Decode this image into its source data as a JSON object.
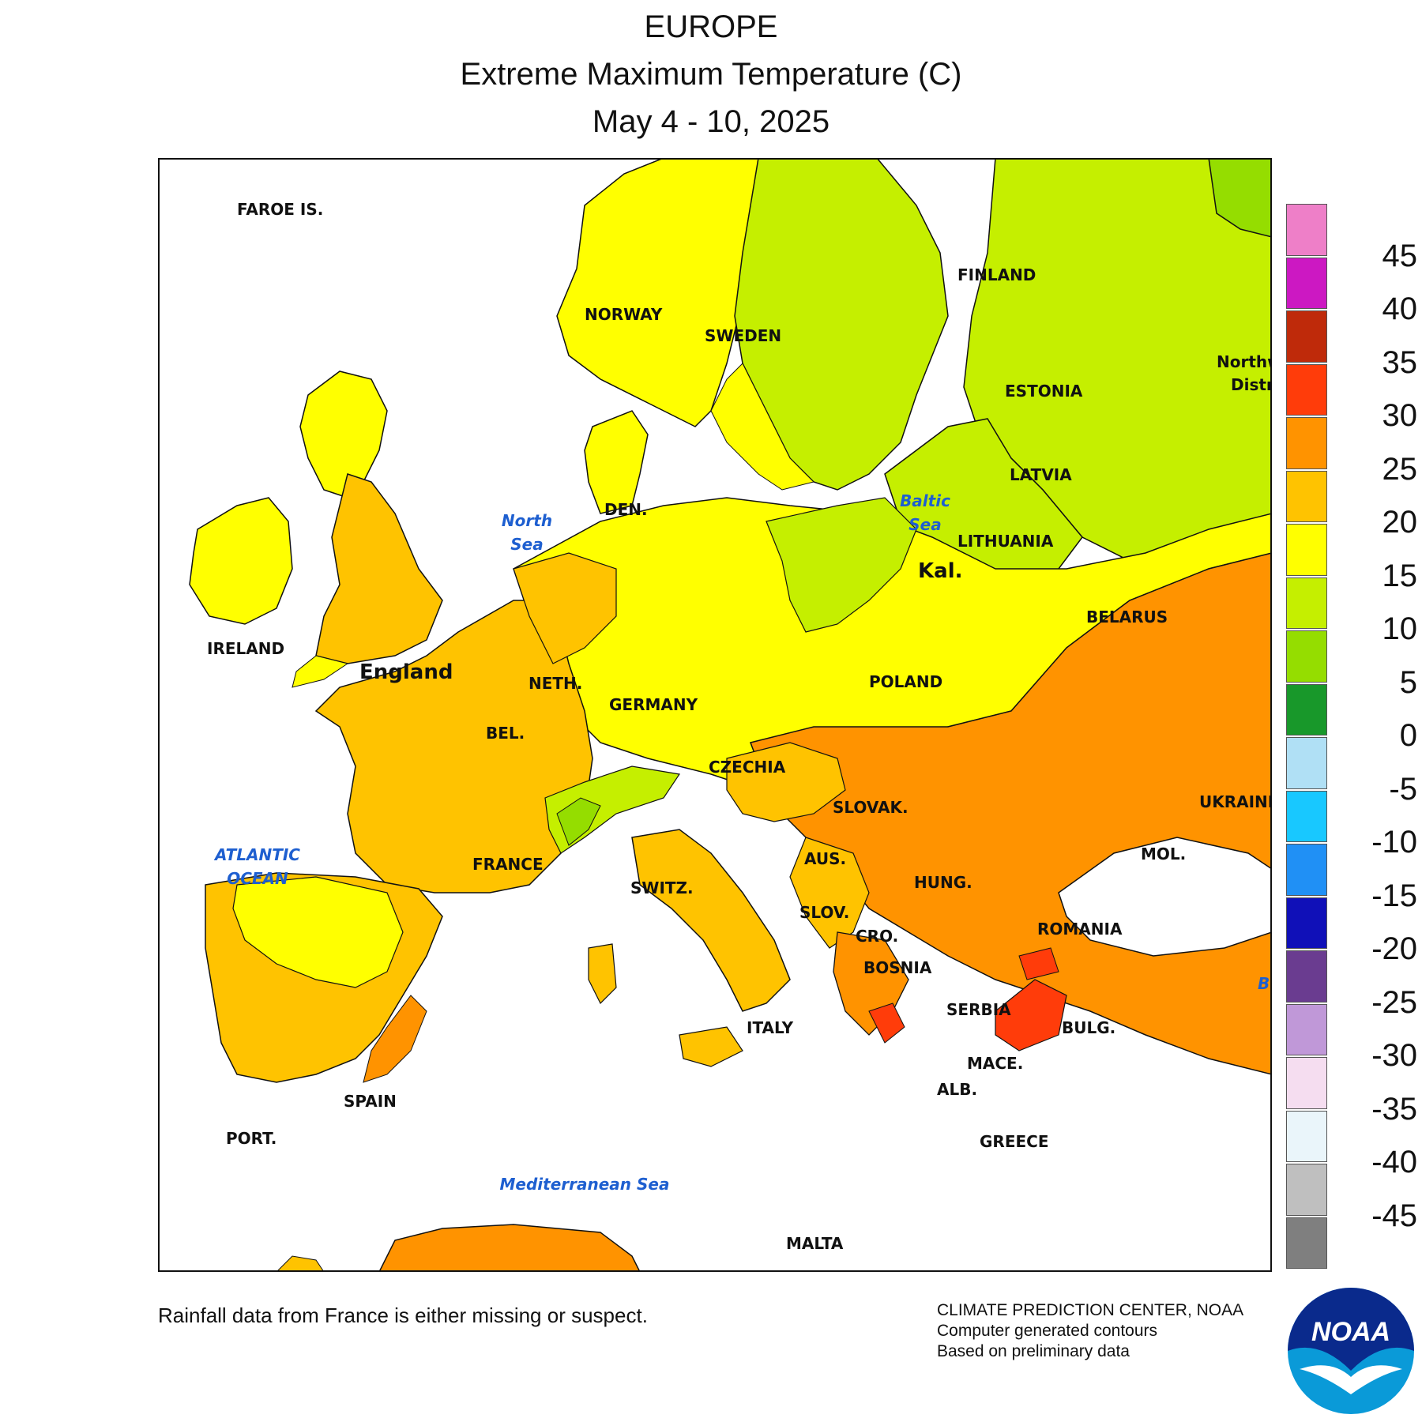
{
  "title": {
    "region": "EUROPE",
    "variable": "Extreme Maximum Temperature (C)",
    "period": "May 4 - 10, 2025"
  },
  "legend": {
    "ticks": [
      "45",
      "40",
      "35",
      "30",
      "25",
      "20",
      "15",
      "10",
      "5",
      "0",
      "-5",
      "-10",
      "-15",
      "-20",
      "-25",
      "-30",
      "-35",
      "-40",
      "-45"
    ],
    "bins": [
      {
        "color": "#ee7fc8",
        "range": ">45"
      },
      {
        "color": "#cc18c2",
        "range": "40 to 45"
      },
      {
        "color": "#bf2a0a",
        "range": "35 to 40"
      },
      {
        "color": "#ff3c0a",
        "range": "30 to 35"
      },
      {
        "color": "#ff9300",
        "range": "25 to 30"
      },
      {
        "color": "#ffc300",
        "range": "20 to 25"
      },
      {
        "color": "#ffff00",
        "range": "15 to 20"
      },
      {
        "color": "#c5ef00",
        "range": "10 to 15"
      },
      {
        "color": "#95dd00",
        "range": "5 to 10"
      },
      {
        "color": "#18982a",
        "range": "0 to 5"
      },
      {
        "color": "#b0e0f5",
        "range": "-5 to 0"
      },
      {
        "color": "#18c8ff",
        "range": "-10 to -5"
      },
      {
        "color": "#2090f5",
        "range": "-15 to -10"
      },
      {
        "color": "#1010b8",
        "range": "-20 to -15"
      },
      {
        "color": "#6a3c90",
        "range": "-25 to -20"
      },
      {
        "color": "#c098d8",
        "range": "-30 to -25"
      },
      {
        "color": "#f5ddf0",
        "range": "-35 to -30"
      },
      {
        "color": "#eaf5fa",
        "range": "-40 to -35"
      },
      {
        "color": "#bfbfbf",
        "range": "-45 to -40"
      },
      {
        "color": "#7f7f7f",
        "range": "<-45"
      }
    ]
  },
  "labels": {
    "faroe": "FAROE IS.",
    "norway": "NORWAY",
    "sweden": "SWEDEN",
    "finland": "FINLAND",
    "estonia": "ESTONIA",
    "latvia": "LATVIA",
    "lithuania": "LITHUANIA",
    "kal": "Kal.",
    "belarus": "BELARUS",
    "ireland": "IRELAND",
    "england": "England",
    "den": "DEN.",
    "neth": "NETH.",
    "germany": "GERMANY",
    "poland": "POLAND",
    "bel": "BEL.",
    "czechia": "CZECHIA",
    "slovak": "SLOVAK.",
    "ukraine": "UKRAINE",
    "france": "FRANCE",
    "switz": "SWITZ.",
    "aus": "AUS.",
    "hung": "HUNG.",
    "mol": "MOL.",
    "slov": "SLOV.",
    "cro": "CRO.",
    "romania": "ROMANIA",
    "bosnia": "BOSNIA",
    "serbia": "SERBIA",
    "italy": "ITALY",
    "bulg": "BULG.",
    "mace": "MACE.",
    "alb": "ALB.",
    "spain": "SPAIN",
    "port": "PORT.",
    "greece": "GREECE",
    "malta": "MALTA",
    "northwest": "Northw",
    "district": "Distri",
    "b": "B"
  },
  "seas": {
    "north_1": "North",
    "north_2": "Sea",
    "baltic_1": "Baltic",
    "baltic_2": "Sea",
    "atlantic_1": "ATLANTIC",
    "atlantic_2": "OCEAN",
    "med": "Mediterranean Sea"
  },
  "footer": {
    "note": "Rainfall data from France is either missing or suspect.",
    "agency": "CLIMATE PREDICTION CENTER, NOAA",
    "line2": "Computer generated contours",
    "line3": "Based on preliminary data"
  },
  "logo": {
    "text": "NOAA"
  }
}
